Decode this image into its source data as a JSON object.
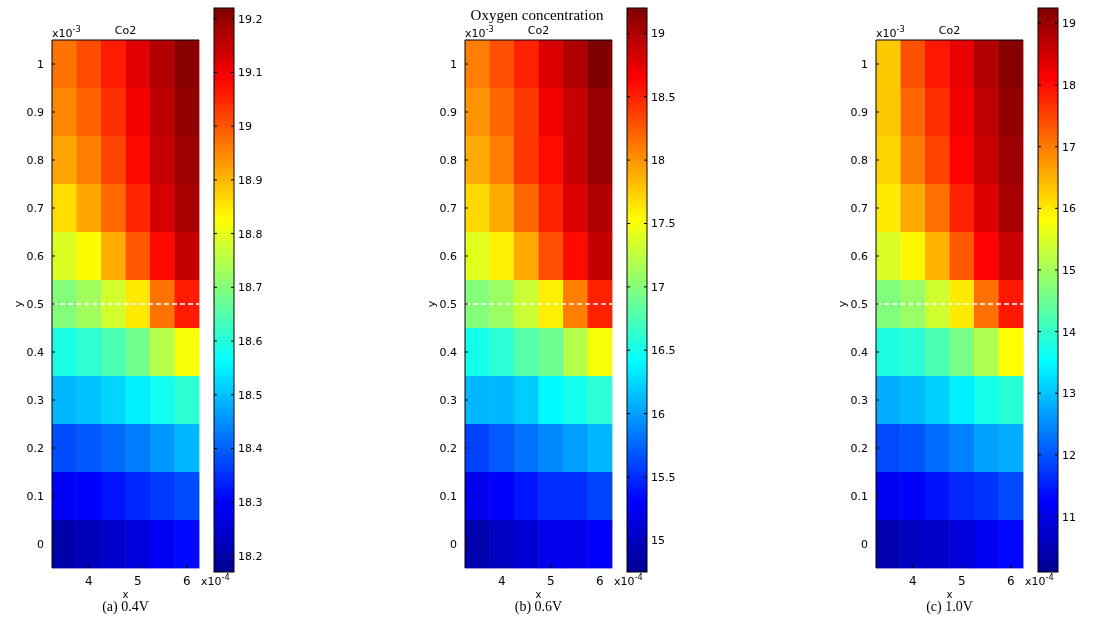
{
  "chart_data": [
    {
      "type": "heatmap",
      "subtitle": "Co2",
      "xlabel": "x",
      "ylabel": "y",
      "categories": [
        null,
        "4",
        null,
        "5",
        null,
        "6"
      ],
      "y_categories": [
        "1",
        "0.9",
        "0.8",
        "0.7",
        "0.6",
        "0.5",
        "0.4",
        "0.3",
        "0.2",
        "0.1",
        "0"
      ],
      "clim": [
        18.17,
        19.22
      ],
      "cticks": [
        18.2,
        18.3,
        18.4,
        18.5,
        18.6,
        18.7,
        18.8,
        18.9,
        19,
        19.1,
        19.2
      ],
      "cells": [
        [
          18.97,
          19.01,
          19.06,
          19.12,
          19.17,
          19.21
        ],
        [
          18.95,
          18.99,
          19.04,
          19.1,
          19.16,
          19.2
        ],
        [
          18.92,
          18.96,
          19.02,
          19.08,
          19.15,
          19.19
        ],
        [
          18.86,
          18.92,
          18.98,
          19.05,
          19.13,
          19.18
        ],
        [
          18.79,
          18.83,
          18.91,
          19.0,
          19.08,
          19.15
        ],
        [
          18.7,
          18.73,
          18.78,
          18.85,
          18.97,
          19.06
        ],
        [
          18.59,
          18.61,
          18.64,
          18.68,
          18.75,
          18.82
        ],
        [
          18.49,
          18.5,
          18.52,
          18.55,
          18.58,
          18.61
        ],
        [
          18.38,
          18.39,
          18.41,
          18.43,
          18.46,
          18.49
        ],
        [
          18.29,
          18.3,
          18.32,
          18.34,
          18.36,
          18.38
        ],
        [
          18.2,
          18.22,
          18.24,
          18.26,
          18.29,
          18.31
        ]
      ],
      "ref_lines": [
        {
          "axis": "y",
          "value": "0.5",
          "color": "#ffffff",
          "line_style": "dashed"
        }
      ],
      "annotations": [
        "x10$^{-3}$",
        "x10$^{-4}$",
        "(a) 0.4V"
      ]
    },
    {
      "type": "heatmap",
      "title": "Oxygen concentration",
      "subtitle": "Co2",
      "xlabel": "x",
      "ylabel": "y",
      "categories": [
        null,
        "4",
        null,
        "5",
        null,
        "6"
      ],
      "y_categories": [
        "1",
        "0.9",
        "0.8",
        "0.7",
        "0.6",
        "0.5",
        "0.4",
        "0.3",
        "0.2",
        "0.1",
        "0"
      ],
      "clim": [
        14.75,
        19.2
      ],
      "cticks": [
        15,
        15.5,
        16,
        16.5,
        17,
        17.5,
        18,
        18.5,
        19
      ],
      "cells": [
        [
          18.1,
          18.3,
          18.5,
          18.8,
          19.0,
          19.2
        ],
        [
          18.0,
          18.2,
          18.4,
          18.7,
          18.9,
          19.1
        ],
        [
          17.9,
          18.1,
          18.4,
          18.6,
          18.9,
          19.1
        ],
        [
          17.7,
          17.9,
          18.2,
          18.5,
          18.8,
          19.0
        ],
        [
          17.4,
          17.6,
          17.9,
          18.3,
          18.6,
          18.9
        ],
        [
          17.0,
          17.1,
          17.3,
          17.6,
          18.1,
          18.5
        ],
        [
          16.5,
          16.6,
          16.8,
          16.9,
          17.2,
          17.5
        ],
        [
          16.1,
          16.1,
          16.2,
          16.4,
          16.5,
          16.6
        ],
        [
          15.6,
          15.7,
          15.8,
          15.9,
          16.0,
          16.1
        ],
        [
          15.2,
          15.3,
          15.4,
          15.5,
          15.5,
          15.6
        ],
        [
          14.9,
          15.0,
          15.1,
          15.2,
          15.2,
          15.3
        ]
      ],
      "ref_lines": [
        {
          "axis": "y",
          "value": "0.5",
          "color": "#ffffff",
          "line_style": "dashed"
        }
      ],
      "annotations": [
        "x10$^{-3}$",
        "x10$^{-4}$",
        "(b) 0.6V"
      ]
    },
    {
      "type": "heatmap",
      "subtitle": "Co2",
      "xlabel": "x",
      "ylabel": "y",
      "categories": [
        null,
        "4",
        null,
        "5",
        null,
        "6"
      ],
      "y_categories": [
        "1",
        "0.9",
        "0.8",
        "0.7",
        "0.6",
        "0.5",
        "0.4",
        "0.3",
        "0.2",
        "0.1",
        "0"
      ],
      "clim": [
        10.1,
        19.25
      ],
      "cticks": [
        11,
        12,
        13,
        14,
        15,
        16,
        17,
        18,
        19
      ],
      "cells": [
        [
          16.3,
          17.4,
          17.9,
          18.3,
          18.8,
          19.2
        ],
        [
          16.3,
          17.2,
          17.7,
          18.2,
          18.7,
          19.1
        ],
        [
          16.2,
          17.0,
          17.5,
          18.1,
          18.6,
          19.0
        ],
        [
          16.0,
          16.6,
          17.1,
          17.8,
          18.4,
          18.9
        ],
        [
          15.5,
          15.9,
          16.5,
          17.3,
          18.1,
          18.6
        ],
        [
          14.7,
          14.9,
          15.4,
          16.0,
          17.1,
          17.9
        ],
        [
          13.8,
          13.9,
          14.2,
          14.6,
          15.1,
          15.8
        ],
        [
          12.8,
          12.9,
          13.1,
          13.4,
          13.7,
          13.9
        ],
        [
          11.9,
          12.0,
          12.2,
          12.4,
          12.7,
          12.8
        ],
        [
          11.1,
          11.2,
          11.4,
          11.6,
          11.7,
          11.9
        ],
        [
          10.4,
          10.6,
          10.7,
          10.9,
          11.1,
          11.3
        ]
      ],
      "ref_lines": [
        {
          "axis": "y",
          "value": "0.5",
          "color": "#ffffff",
          "line_style": "dashed"
        }
      ],
      "annotations": [
        "x10$^{-3}$",
        "x10$^{-4}$",
        "(c) 1.0V"
      ]
    }
  ]
}
